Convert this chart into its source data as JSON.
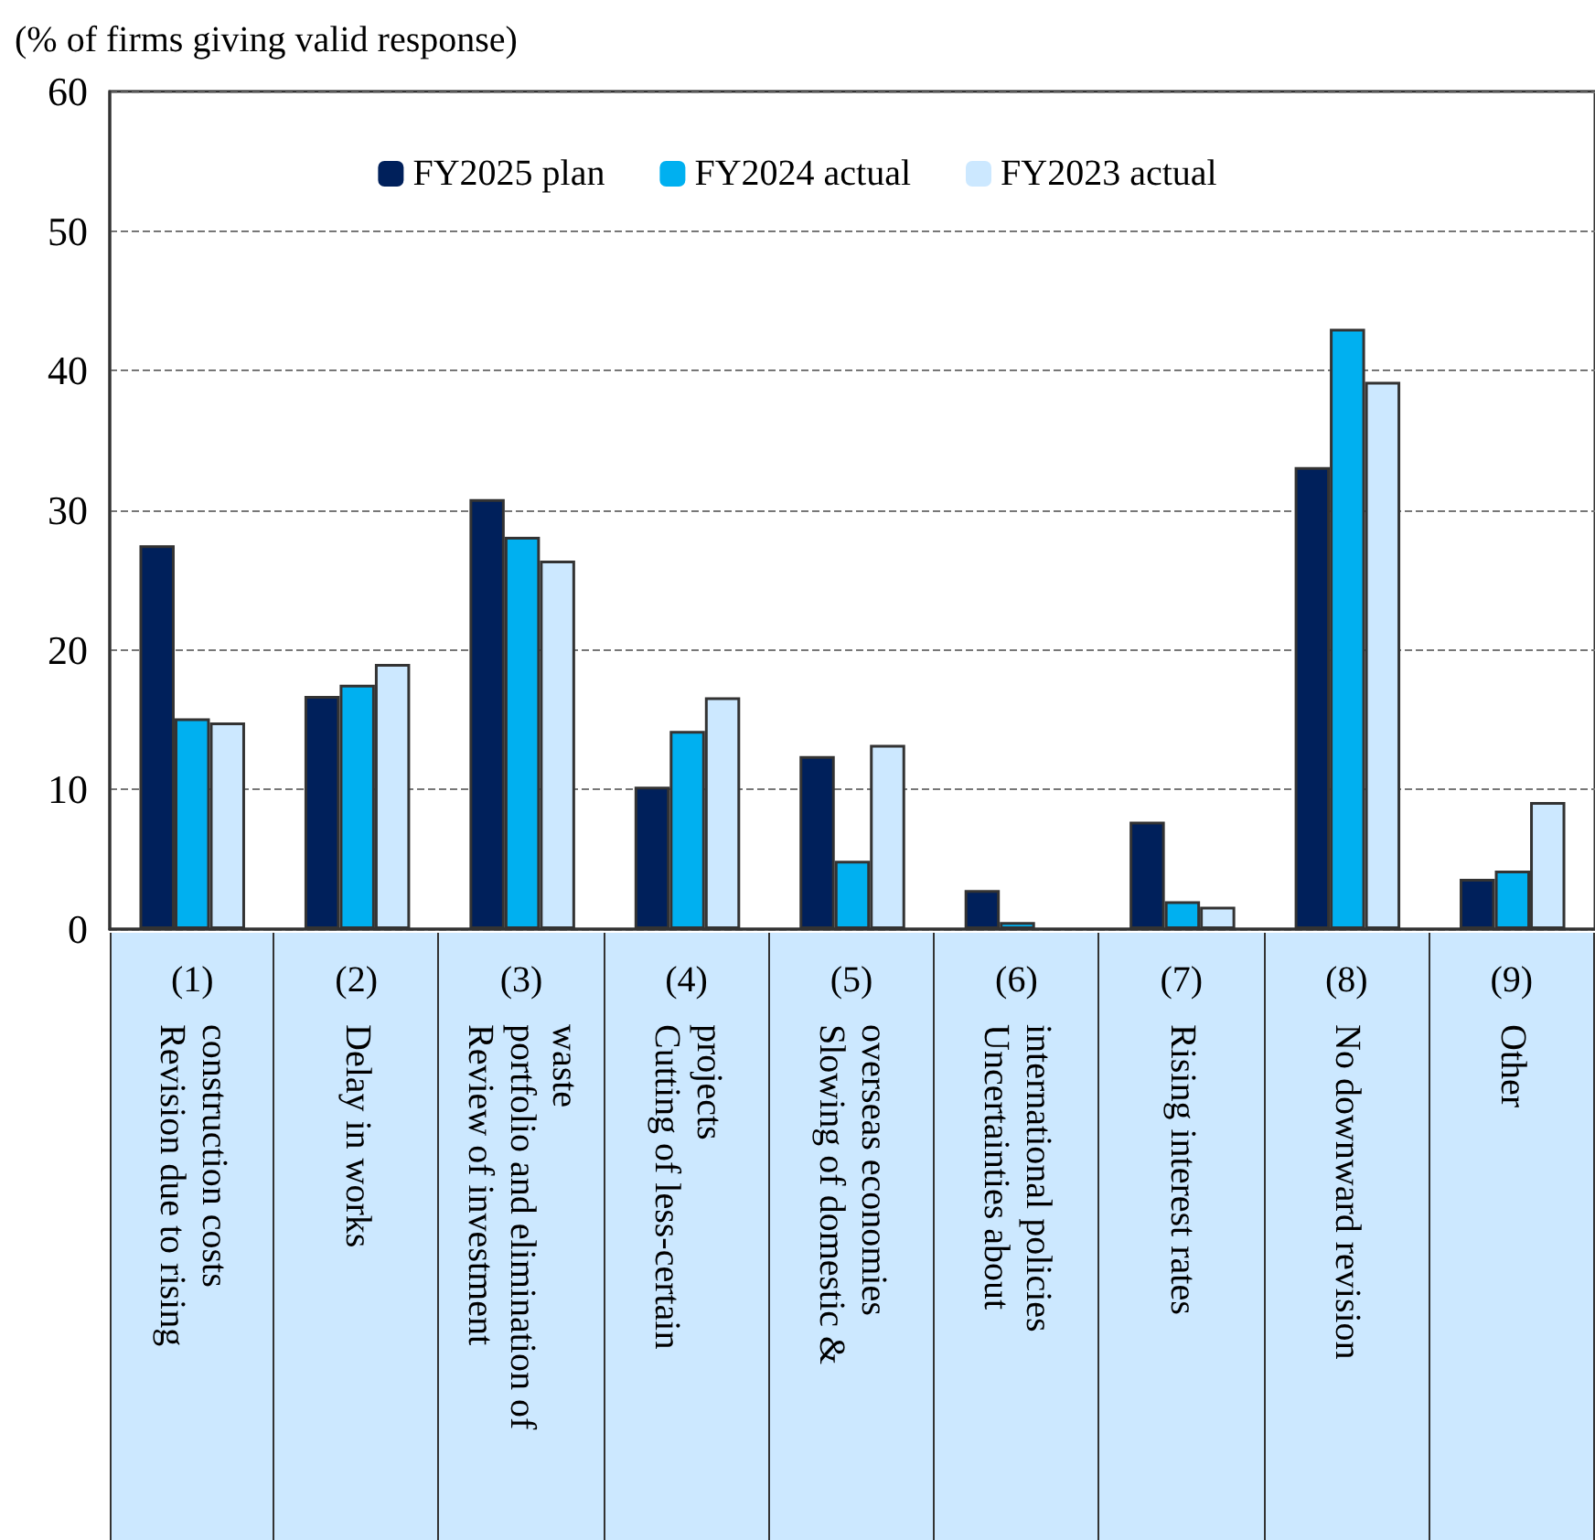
{
  "chart_data": {
    "type": "bar",
    "ylabel": "(% of firms giving valid response)",
    "categories": [
      "(1) Revision due to rising construction costs",
      "(2) Delay in works",
      "(3) Review of investment portfolio and elimination of waste",
      "(4) Cutting of less-certain projects",
      "(5) Slowing of domestic & overseas economies",
      "(6) Uncertainties about international policies",
      "(7) Rising interest rates",
      "(8) No downward revision",
      "(9) Other"
    ],
    "series": [
      {
        "name": "FY2025 plan",
        "color": "#00205b",
        "values": [
          27.5,
          16.7,
          30.8,
          10.2,
          12.4,
          2.8,
          7.7,
          33.1,
          3.6
        ]
      },
      {
        "name": "FY2024 actual",
        "color": "#00b0f0",
        "values": [
          15.1,
          17.5,
          28.1,
          14.2,
          4.9,
          0.5,
          2.0,
          43.0,
          4.2
        ]
      },
      {
        "name": "FY2023 actual",
        "color": "#cce8ff",
        "values": [
          14.8,
          19.0,
          26.4,
          16.6,
          13.2,
          0,
          1.6,
          39.2,
          9.1
        ]
      }
    ],
    "ylim": [
      0,
      60
    ],
    "yticks": [
      0,
      10,
      20,
      30,
      40,
      50,
      60
    ],
    "grid": "y",
    "legend": "top"
  }
}
